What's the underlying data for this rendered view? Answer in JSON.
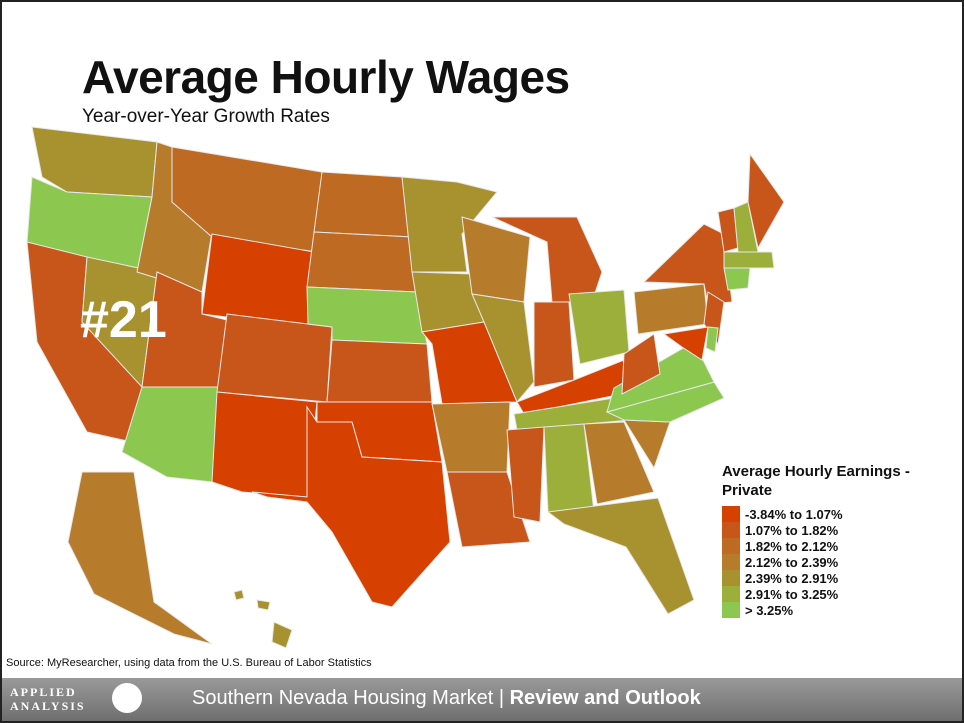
{
  "title": "Average Hourly Wages",
  "subtitle": "Year-over-Year Growth Rates",
  "rank_label": "#21",
  "legend": {
    "title": "Average Hourly Earnings - Private",
    "items": [
      {
        "label": "-3.84% to 1.07%",
        "color": "#d64000"
      },
      {
        "label": "1.07% to 1.82%",
        "color": "#c8561a"
      },
      {
        "label": "1.82% to 2.12%",
        "color": "#be6a22"
      },
      {
        "label": "2.12% to 2.39%",
        "color": "#b67c2c"
      },
      {
        "label": "2.39% to 2.91%",
        "color": "#a8922f"
      },
      {
        "label": "2.91% to 3.25%",
        "color": "#9caf3b"
      },
      {
        "label": "> 3.25%",
        "color": "#8cc84f"
      }
    ]
  },
  "source": "Source: MyResearcher, using data from the U.S. Bureau of Labor Statistics",
  "footer": {
    "logo": [
      "APPLIED",
      "ANALYSIS"
    ],
    "text": "Southern Nevada Housing Market",
    "separator": "|",
    "bold": "Review and Outlook"
  }
}
